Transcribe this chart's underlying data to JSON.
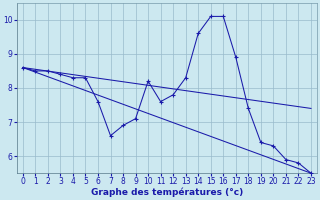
{
  "bg_color": "#cce8f0",
  "line_color": "#1a1aaa",
  "grid_color": "#99bbcc",
  "ylim": [
    5.5,
    10.5
  ],
  "xlim": [
    -0.5,
    23.5
  ],
  "yticks": [
    6,
    7,
    8,
    9,
    10
  ],
  "xticks": [
    0,
    1,
    2,
    3,
    4,
    5,
    6,
    7,
    8,
    9,
    10,
    11,
    12,
    13,
    14,
    15,
    16,
    17,
    18,
    19,
    20,
    21,
    22,
    23
  ],
  "xlabel": "Graphe des températures (°c)",
  "curve_x": [
    0,
    1,
    2,
    3,
    4,
    5,
    6,
    7,
    8,
    9,
    10,
    11,
    12,
    13,
    14,
    15,
    16,
    17,
    18,
    19,
    20,
    21,
    22,
    23
  ],
  "curve_y": [
    8.6,
    8.5,
    8.5,
    8.4,
    8.3,
    8.3,
    7.6,
    6.6,
    6.9,
    7.1,
    8.2,
    7.6,
    7.8,
    8.3,
    9.6,
    10.1,
    10.1,
    8.9,
    7.4,
    6.4,
    6.3,
    5.9,
    5.8,
    5.5
  ],
  "trend1_x": [
    0,
    23
  ],
  "trend1_y": [
    8.6,
    7.4
  ],
  "trend2_x": [
    0,
    23
  ],
  "trend2_y": [
    8.6,
    5.5
  ],
  "tick_fontsize": 5.5,
  "xlabel_fontsize": 6.5
}
